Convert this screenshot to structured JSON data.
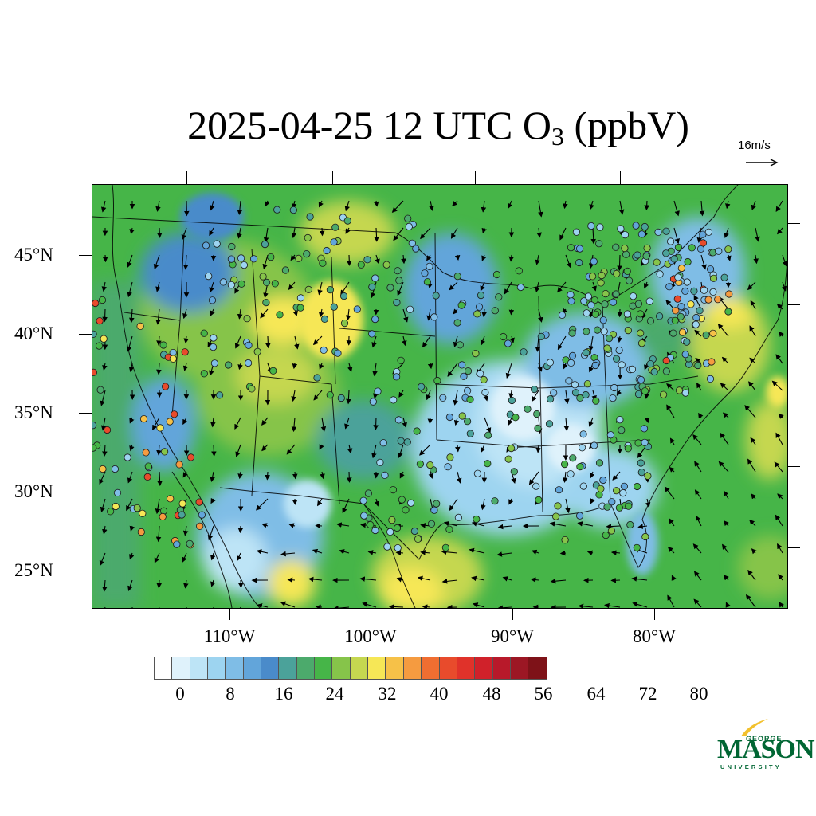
{
  "title": {
    "main": "2025-04-25 12 UTC O",
    "subscript": "3",
    "units": " (ppbV)"
  },
  "wind_reference": {
    "label": "16m/s"
  },
  "axes": {
    "lat_labels": [
      "45°N",
      "40°N",
      "35°N",
      "30°N",
      "25°N"
    ],
    "lon_labels": [
      "110°W",
      "100°W",
      "90°W",
      "80°W"
    ]
  },
  "colorbar": {
    "tick_labels": [
      "0",
      "8",
      "16",
      "24",
      "32",
      "40",
      "48",
      "56",
      "64",
      "72",
      "80"
    ],
    "colors": [
      "#ffffff",
      "#dff2fb",
      "#bde4f6",
      "#9dd4f0",
      "#7fbde6",
      "#62a5da",
      "#4a8bca",
      "#4ba29a",
      "#4caa6c",
      "#46b548",
      "#86c44a",
      "#c5d750",
      "#f6e756",
      "#f6c148",
      "#f59b40",
      "#f06e31",
      "#e84b2c",
      "#e0322a",
      "#d0212a",
      "#b8192a",
      "#9c1724",
      "#7e1218"
    ]
  },
  "logo": {
    "line1": "GEORGE",
    "line2": "MASON",
    "line3": "UNIVERSITY"
  }
}
